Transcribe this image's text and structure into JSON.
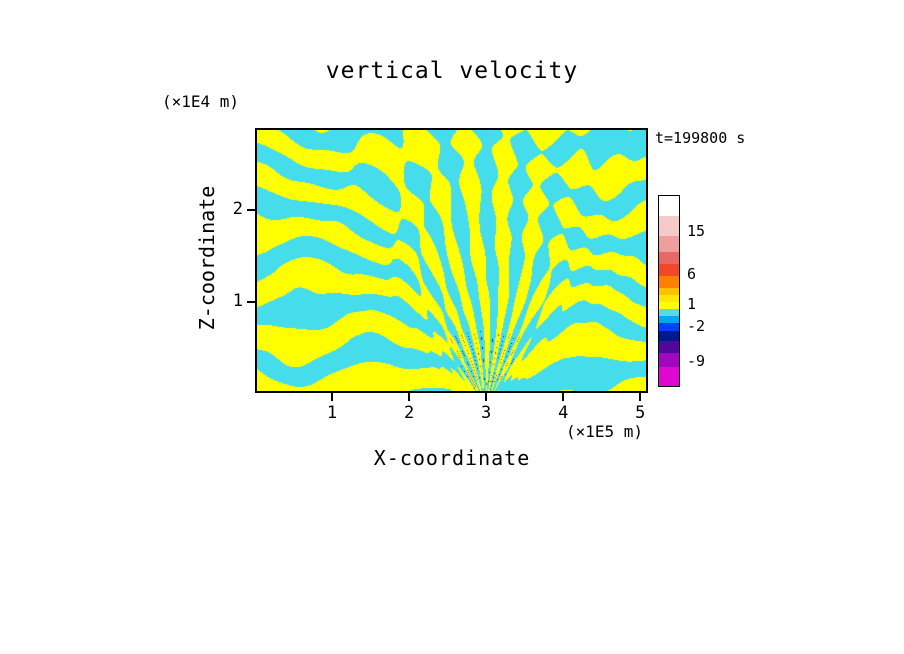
{
  "chart_data": {
    "type": "heatmap",
    "title": "vertical velocity",
    "timestamp": "t=199800 s",
    "xlabel": "X-coordinate",
    "ylabel": "Z-coordinate",
    "x_unit": "(×1E5 m)",
    "y_unit": "(×1E4 m)",
    "xlim": [
      0,
      5.1
    ],
    "ylim": [
      0,
      2.9
    ],
    "x_ticks": [
      1,
      2,
      3,
      4,
      5
    ],
    "y_ticks": [
      1,
      2
    ],
    "grid": false,
    "legend_position": "right",
    "field_description": "Filled contour field of vertical velocity in an x-z plane: interleaved yellow (positive, updraft) and cyan (negative, downdraft) bands, horizontally layered aloft and converging into fine fan-like filaments toward x≈3 (×1E5 m) near the bottom boundary, with small intense red/blue extrema embedded in the convergence zone.",
    "positive_color": "#ffff00",
    "negative_color": "#45dcec",
    "pattern": {
      "source_x": 0.588,
      "spokes": 60,
      "layers": 5.5,
      "strong_positive_color": "#e83010",
      "strong_negative_color": "#2018b0"
    },
    "colorbar": {
      "values": [
        15,
        6,
        1,
        -2,
        -9
      ],
      "labels": [
        {
          "text": "15",
          "offset": 35
        },
        {
          "text": "6",
          "offset": 78
        },
        {
          "text": "1",
          "offset": 108
        },
        {
          "text": "-2",
          "offset": 130
        },
        {
          "text": "-9",
          "offset": 165
        }
      ],
      "segments": [
        {
          "color": "#ffffff",
          "h": 20
        },
        {
          "color": "#f7caca",
          "h": 20
        },
        {
          "color": "#ef9e9e",
          "h": 16
        },
        {
          "color": "#e86868",
          "h": 12
        },
        {
          "color": "#f04828",
          "h": 12
        },
        {
          "color": "#ff7f00",
          "h": 12
        },
        {
          "color": "#ffc000",
          "h": 7
        },
        {
          "color": "#ffe800",
          "h": 7
        },
        {
          "color": "#ffff00",
          "h": 7
        },
        {
          "color": "#55dce8",
          "h": 7
        },
        {
          "color": "#00a8f0",
          "h": 7
        },
        {
          "color": "#0040ff",
          "h": 8
        },
        {
          "color": "#001890",
          "h": 10
        },
        {
          "color": "#500898",
          "h": 12
        },
        {
          "color": "#a008c0",
          "h": 14
        },
        {
          "color": "#e008d0",
          "h": 19
        }
      ]
    }
  }
}
